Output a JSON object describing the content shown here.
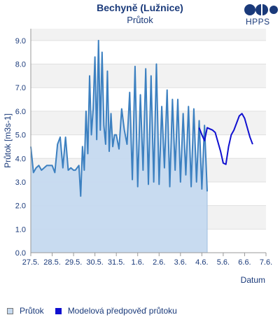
{
  "header": {
    "title": "Bechyně (Lužnice)",
    "subtitle": "Průtok",
    "logo_text": "HPPS"
  },
  "colors": {
    "observed_line": "#3c80c0",
    "observed_fill": "#c5d9ef",
    "forecast_line": "#1010d0",
    "band": "#f2f2f2",
    "text": "#1a3a7a"
  },
  "chart_data": {
    "type": "line",
    "title": "Bechyně (Lužnice)",
    "subtitle": "Průtok",
    "xlabel": "Datum",
    "ylabel": "Průtok [m3s-1]",
    "ylim": [
      0,
      9.5
    ],
    "xlim": [
      "2025-05-27",
      "2025-06-07"
    ],
    "x_tick_labels": [
      "27.5.",
      "28.5.",
      "29.5.",
      "30.5.",
      "31.5.",
      "1.6.",
      "2.6.",
      "3.6.",
      "4.6.",
      "5.6.",
      "6.6.",
      "7.6."
    ],
    "y_tick_labels": [
      "0.0",
      "1.0",
      "2.0",
      "3.0",
      "4.0",
      "5.0",
      "6.0",
      "7.0",
      "8.0",
      "9.0"
    ],
    "grid": "horizontal bands",
    "legend_position": "bottom",
    "series": [
      {
        "name": "Průtok",
        "style": "area",
        "x": [
          "2025-05-27 00:00",
          "2025-05-27 03:00",
          "2025-05-27 06:00",
          "2025-05-27 09:00",
          "2025-05-27 12:00",
          "2025-05-27 18:00",
          "2025-05-28 00:00",
          "2025-05-28 03:00",
          "2025-05-28 06:00",
          "2025-05-28 09:00",
          "2025-05-28 12:00",
          "2025-05-28 15:00",
          "2025-05-28 18:00",
          "2025-05-28 21:00",
          "2025-05-29 00:00",
          "2025-05-29 02:00",
          "2025-05-29 04:00",
          "2025-05-29 06:00",
          "2025-05-29 08:00",
          "2025-05-29 10:00",
          "2025-05-29 12:00",
          "2025-05-29 14:00",
          "2025-05-29 16:00",
          "2025-05-29 18:00",
          "2025-05-29 20:00",
          "2025-05-29 22:00",
          "2025-05-30 00:00",
          "2025-05-30 02:00",
          "2025-05-30 04:00",
          "2025-05-30 06:00",
          "2025-05-30 08:00",
          "2025-05-30 10:00",
          "2025-05-30 12:00",
          "2025-05-30 14:00",
          "2025-05-30 16:00",
          "2025-05-30 18:00",
          "2025-05-30 20:00",
          "2025-05-30 22:00",
          "2025-05-31 00:00",
          "2025-05-31 03:00",
          "2025-05-31 06:00",
          "2025-05-31 09:00",
          "2025-05-31 12:00",
          "2025-05-31 15:00",
          "2025-05-31 18:00",
          "2025-05-31 21:00",
          "2025-06-01 00:00",
          "2025-06-01 03:00",
          "2025-06-01 06:00",
          "2025-06-01 09:00",
          "2025-06-01 12:00",
          "2025-06-01 15:00",
          "2025-06-01 18:00",
          "2025-06-01 21:00",
          "2025-06-02 00:00",
          "2025-06-02 03:00",
          "2025-06-02 06:00",
          "2025-06-02 09:00",
          "2025-06-02 12:00",
          "2025-06-02 15:00",
          "2025-06-02 18:00",
          "2025-06-02 21:00",
          "2025-06-03 00:00",
          "2025-06-03 03:00",
          "2025-06-03 06:00",
          "2025-06-03 09:00",
          "2025-06-03 12:00",
          "2025-06-03 15:00",
          "2025-06-03 18:00",
          "2025-06-03 21:00",
          "2025-06-04 00:00",
          "2025-06-04 03:00",
          "2025-06-04 06:00"
        ],
        "values": [
          4.5,
          3.4,
          3.6,
          3.7,
          3.5,
          3.7,
          3.7,
          3.4,
          4.6,
          4.9,
          3.6,
          4.9,
          3.5,
          3.6,
          3.5,
          3.5,
          3.6,
          3.7,
          2.4,
          4.5,
          3.5,
          6.0,
          4.2,
          7.5,
          5.0,
          6.1,
          8.3,
          4.8,
          9.0,
          5.2,
          8.5,
          5.4,
          4.6,
          7.7,
          4.3,
          5.9,
          4.5,
          5.0,
          5.0,
          4.4,
          6.1,
          5.2,
          4.6,
          6.8,
          3.1,
          7.9,
          2.8,
          6.7,
          3.5,
          7.8,
          2.9,
          7.5,
          3.0,
          8.0,
          2.9,
          6.2,
          3.6,
          6.9,
          2.8,
          6.5,
          3.5,
          6.5,
          3.0,
          5.9,
          3.3,
          6.2,
          2.8,
          6.1,
          3.0,
          5.6,
          2.7,
          5.4,
          2.6
        ]
      },
      {
        "name": "Modelová předpověď průtoku",
        "style": "line",
        "x": [
          "2025-06-03 21:00",
          "2025-06-04 00:00",
          "2025-06-04 03:00",
          "2025-06-04 06:00",
          "2025-06-04 09:00",
          "2025-06-04 12:00",
          "2025-06-04 15:00",
          "2025-06-04 18:00",
          "2025-06-04 21:00",
          "2025-06-05 00:00",
          "2025-06-05 03:00",
          "2025-06-05 06:00",
          "2025-06-05 09:00",
          "2025-06-05 12:00",
          "2025-06-05 15:00",
          "2025-06-05 18:00",
          "2025-06-05 21:00",
          "2025-06-06 00:00",
          "2025-06-06 03:00",
          "2025-06-06 06:00",
          "2025-06-06 09:00"
        ],
        "values": [
          5.3,
          5.0,
          4.75,
          5.3,
          5.25,
          5.2,
          5.1,
          4.7,
          4.3,
          3.8,
          3.75,
          4.5,
          5.0,
          5.2,
          5.5,
          5.8,
          5.9,
          5.7,
          5.3,
          4.9,
          4.6
        ]
      }
    ]
  },
  "legend": {
    "items": [
      {
        "label": "Průtok",
        "color": "#c5d9ef",
        "border": "#777777"
      },
      {
        "label": "Modelová předpověď průtoku",
        "color": "#1010d0",
        "border": "#1010d0"
      }
    ]
  }
}
